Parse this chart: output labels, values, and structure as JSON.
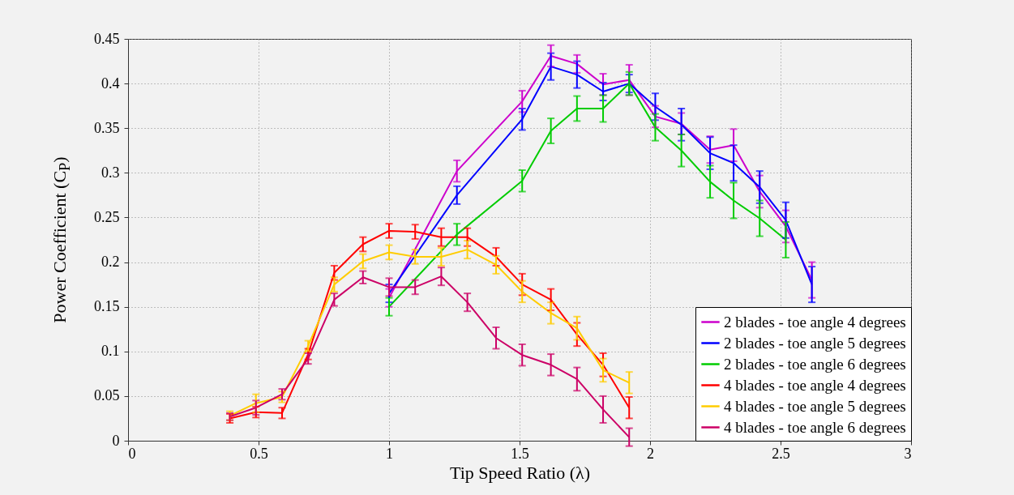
{
  "chart_data": {
    "type": "line",
    "xlabel": "Tip Speed Ratio (λ)",
    "ylabel": "Power Coefficient (C$_{P}$)",
    "xlim": [
      0,
      3
    ],
    "xticks": [
      0,
      0.5,
      1,
      1.5,
      2,
      2.5,
      3
    ],
    "ylim": [
      0,
      0.45
    ],
    "yticks": [
      0,
      0.05,
      0.1,
      0.15,
      0.2,
      0.25,
      0.3,
      0.35,
      0.4,
      0.45
    ],
    "grid": true,
    "legend": "bottom right",
    "series": [
      {
        "name": "2 blades - toe angle 4 degrees",
        "color": "#cc00cc",
        "x": [
          1.0,
          1.26,
          1.51,
          1.62,
          1.72,
          1.82,
          1.92,
          2.02,
          2.12,
          2.23,
          2.32,
          2.42,
          2.52,
          2.62
        ],
        "values": [
          0.16,
          0.302,
          0.38,
          0.431,
          0.422,
          0.399,
          0.404,
          0.363,
          0.355,
          0.326,
          0.331,
          0.279,
          0.24,
          0.18
        ],
        "errors": [
          0.01,
          0.012,
          0.012,
          0.012,
          0.01,
          0.012,
          0.017,
          0.012,
          0.012,
          0.015,
          0.018,
          0.018,
          0.018,
          0.02
        ]
      },
      {
        "name": "2 blades - toe angle 5 degrees",
        "color": "#0000ff",
        "x": [
          1.0,
          1.26,
          1.51,
          1.62,
          1.72,
          1.82,
          1.92,
          2.02,
          2.12,
          2.23,
          2.32,
          2.42,
          2.52,
          2.62
        ],
        "values": [
          0.165,
          0.275,
          0.36,
          0.419,
          0.41,
          0.391,
          0.4,
          0.374,
          0.354,
          0.322,
          0.311,
          0.284,
          0.247,
          0.175
        ],
        "errors": [
          0.01,
          0.01,
          0.012,
          0.015,
          0.015,
          0.01,
          0.01,
          0.015,
          0.018,
          0.018,
          0.02,
          0.018,
          0.02,
          0.02
        ]
      },
      {
        "name": "2 blades - toe angle 6 degrees",
        "color": "#00cc00",
        "x": [
          1.0,
          1.26,
          1.51,
          1.62,
          1.72,
          1.82,
          1.92,
          2.02,
          2.12,
          2.23,
          2.32,
          2.42,
          2.52
        ],
        "values": [
          0.15,
          0.231,
          0.291,
          0.347,
          0.372,
          0.372,
          0.4,
          0.351,
          0.325,
          0.29,
          0.269,
          0.249,
          0.225
        ],
        "errors": [
          0.01,
          0.012,
          0.012,
          0.014,
          0.014,
          0.015,
          0.013,
          0.015,
          0.018,
          0.018,
          0.02,
          0.02,
          0.02
        ]
      },
      {
        "name": "4 blades - toe angle 4 degrees",
        "color": "#ff0000",
        "x": [
          0.39,
          0.49,
          0.59,
          0.69,
          0.79,
          0.9,
          1.0,
          1.1,
          1.2,
          1.3,
          1.41,
          1.51,
          1.62,
          1.72,
          1.82,
          1.92
        ],
        "values": [
          0.025,
          0.032,
          0.031,
          0.097,
          0.188,
          0.22,
          0.235,
          0.234,
          0.228,
          0.228,
          0.206,
          0.175,
          0.158,
          0.119,
          0.085,
          0.037
        ],
        "errors": [
          0.005,
          0.006,
          0.006,
          0.006,
          0.008,
          0.008,
          0.008,
          0.008,
          0.01,
          0.01,
          0.01,
          0.012,
          0.012,
          0.013,
          0.013,
          0.012
        ]
      },
      {
        "name": "4 blades - toe angle 5 degrees",
        "color": "#ffcc00",
        "x": [
          0.39,
          0.49,
          0.59,
          0.69,
          0.79,
          0.9,
          1.0,
          1.1,
          1.2,
          1.3,
          1.41,
          1.51,
          1.62,
          1.72,
          1.82,
          1.92
        ],
        "values": [
          0.028,
          0.042,
          0.049,
          0.106,
          0.175,
          0.201,
          0.211,
          0.206,
          0.206,
          0.214,
          0.197,
          0.167,
          0.143,
          0.126,
          0.079,
          0.065
        ],
        "errors": [
          0.005,
          0.01,
          0.006,
          0.006,
          0.008,
          0.008,
          0.008,
          0.008,
          0.01,
          0.01,
          0.01,
          0.012,
          0.012,
          0.013,
          0.013,
          0.012
        ]
      },
      {
        "name": "4 blades - toe angle 6 degrees",
        "color": "#cc0066",
        "x": [
          0.39,
          0.49,
          0.59,
          0.69,
          0.79,
          0.9,
          1.0,
          1.1,
          1.2,
          1.3,
          1.41,
          1.51,
          1.62,
          1.72,
          1.82,
          1.92
        ],
        "values": [
          0.027,
          0.037,
          0.052,
          0.092,
          0.158,
          0.183,
          0.172,
          0.172,
          0.184,
          0.155,
          0.115,
          0.096,
          0.085,
          0.069,
          0.035,
          0.004
        ],
        "errors": [
          0.004,
          0.008,
          0.006,
          0.006,
          0.007,
          0.007,
          0.01,
          0.008,
          0.01,
          0.01,
          0.012,
          0.012,
          0.012,
          0.013,
          0.015,
          0.01
        ]
      }
    ]
  }
}
